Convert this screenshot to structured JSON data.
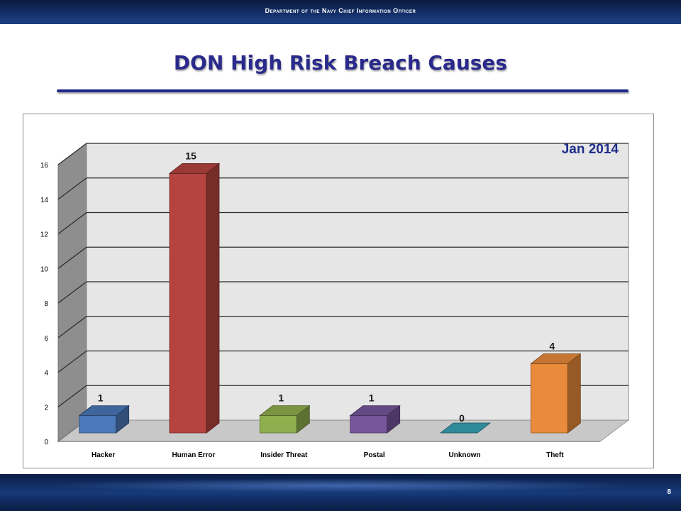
{
  "header": {
    "org_name": "Department of the Navy Chief Information Officer"
  },
  "slide": {
    "title": "DON High Risk Breach Causes",
    "page_number": "8"
  },
  "chart_data": {
    "type": "bar",
    "title": "",
    "annotation": "Jan 2014",
    "categories": [
      "Hacker",
      "Human Error",
      "Insider Threat",
      "Postal",
      "Unknown",
      "Theft"
    ],
    "values": [
      1,
      15,
      1,
      1,
      0,
      4
    ],
    "data_labels": [
      "1",
      "15",
      "1",
      "1",
      "0",
      "4"
    ],
    "colors": [
      "#4a78b8",
      "#b5433f",
      "#8fae4e",
      "#77569b",
      "#2f8a99",
      "#e98b3b"
    ],
    "ylim": [
      0,
      16
    ],
    "yticks": [
      "0",
      "2",
      "4",
      "6",
      "8",
      "10",
      "12",
      "14",
      "16"
    ],
    "xlabel": "",
    "ylabel": "",
    "grid": true,
    "style": "3d-column"
  }
}
